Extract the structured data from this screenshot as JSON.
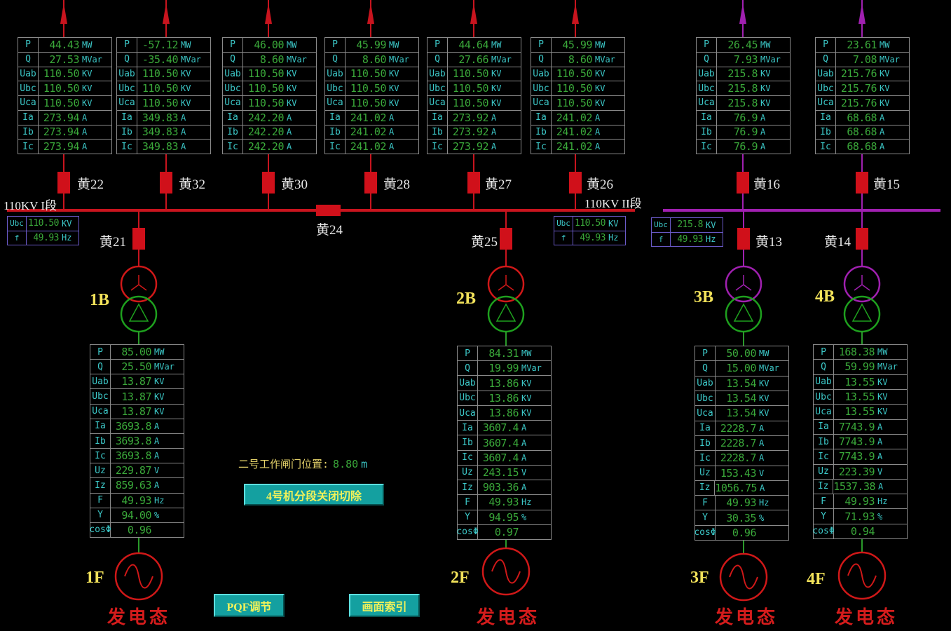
{
  "colors": {
    "bus_110kv": "#c8141e",
    "bus_220kv": "#a020b0",
    "breaker": "#d0101a",
    "value": "#3aa83a",
    "label": "#3cc8c8",
    "gen_line": "#2a9a2a"
  },
  "buses": [
    {
      "name": "110KV I段",
      "ubc": "110.50",
      "ubc_unit": "KV",
      "f": "49.93",
      "f_unit": "Hz"
    },
    {
      "name": "110KV II段",
      "ubc": "110.50",
      "ubc_unit": "KV",
      "f": "49.93",
      "f_unit": "Hz"
    },
    {
      "name": "",
      "ubc": "215.8",
      "ubc_unit": "KV",
      "f": "49.93",
      "f_unit": "Hz"
    }
  ],
  "bus_row_labels": {
    "ubc": "Ubc",
    "f": "f"
  },
  "feeders": [
    {
      "breaker": "黄22",
      "rows": [
        [
          "P",
          "44.43",
          "MW"
        ],
        [
          "Q",
          "27.53",
          "MVar"
        ],
        [
          "Uab",
          "110.50",
          "KV"
        ],
        [
          "Ubc",
          "110.50",
          "KV"
        ],
        [
          "Uca",
          "110.50",
          "KV"
        ],
        [
          "Ia",
          "273.94",
          "A"
        ],
        [
          "Ib",
          "273.94",
          "A"
        ],
        [
          "Ic",
          "273.94",
          "A"
        ]
      ]
    },
    {
      "breaker": "黄32",
      "rows": [
        [
          "P",
          "-57.12",
          "MW"
        ],
        [
          "Q",
          "-35.40",
          "MVar"
        ],
        [
          "Uab",
          "110.50",
          "KV"
        ],
        [
          "Ubc",
          "110.50",
          "KV"
        ],
        [
          "Uca",
          "110.50",
          "KV"
        ],
        [
          "Ia",
          "349.83",
          "A"
        ],
        [
          "Ib",
          "349.83",
          "A"
        ],
        [
          "Ic",
          "349.83",
          "A"
        ]
      ]
    },
    {
      "breaker": "黄30",
      "rows": [
        [
          "P",
          "46.00",
          "MW"
        ],
        [
          "Q",
          "8.60",
          "MVar"
        ],
        [
          "Uab",
          "110.50",
          "KV"
        ],
        [
          "Ubc",
          "110.50",
          "KV"
        ],
        [
          "Uca",
          "110.50",
          "KV"
        ],
        [
          "Ia",
          "242.20",
          "A"
        ],
        [
          "Ib",
          "242.20",
          "A"
        ],
        [
          "Ic",
          "242.20",
          "A"
        ]
      ]
    },
    {
      "breaker": "黄28",
      "rows": [
        [
          "P",
          "45.99",
          "MW"
        ],
        [
          "Q",
          "8.60",
          "MVar"
        ],
        [
          "Uab",
          "110.50",
          "KV"
        ],
        [
          "Ubc",
          "110.50",
          "KV"
        ],
        [
          "Uca",
          "110.50",
          "KV"
        ],
        [
          "Ia",
          "241.02",
          "A"
        ],
        [
          "Ib",
          "241.02",
          "A"
        ],
        [
          "Ic",
          "241.02",
          "A"
        ]
      ]
    },
    {
      "breaker": "黄27",
      "rows": [
        [
          "P",
          "44.64",
          "MW"
        ],
        [
          "Q",
          "27.66",
          "MVar"
        ],
        [
          "Uab",
          "110.50",
          "KV"
        ],
        [
          "Ubc",
          "110.50",
          "KV"
        ],
        [
          "Uca",
          "110.50",
          "KV"
        ],
        [
          "Ia",
          "273.92",
          "A"
        ],
        [
          "Ib",
          "273.92",
          "A"
        ],
        [
          "Ic",
          "273.92",
          "A"
        ]
      ]
    },
    {
      "breaker": "黄26",
      "rows": [
        [
          "P",
          "45.99",
          "MW"
        ],
        [
          "Q",
          "8.60",
          "MVar"
        ],
        [
          "Uab",
          "110.50",
          "KV"
        ],
        [
          "Ubc",
          "110.50",
          "KV"
        ],
        [
          "Uca",
          "110.50",
          "KV"
        ],
        [
          "Ia",
          "241.02",
          "A"
        ],
        [
          "Ib",
          "241.02",
          "A"
        ],
        [
          "Ic",
          "241.02",
          "A"
        ]
      ]
    },
    {
      "breaker": "黄16",
      "rows": [
        [
          "P",
          "26.45",
          "MW"
        ],
        [
          "Q",
          "7.93",
          "MVar"
        ],
        [
          "Uab",
          "215.8",
          "KV"
        ],
        [
          "Ubc",
          "215.8",
          "KV"
        ],
        [
          "Uca",
          "215.8",
          "KV"
        ],
        [
          "Ia",
          "76.9",
          "A"
        ],
        [
          "Ib",
          "76.9",
          "A"
        ],
        [
          "Ic",
          "76.9",
          "A"
        ]
      ]
    },
    {
      "breaker": "黄15",
      "rows": [
        [
          "P",
          "23.61",
          "MW"
        ],
        [
          "Q",
          "7.08",
          "MVar"
        ],
        [
          "Uab",
          "215.76",
          "KV"
        ],
        [
          "Ubc",
          "215.76",
          "KV"
        ],
        [
          "Uca",
          "215.76",
          "KV"
        ],
        [
          "Ia",
          "68.68",
          "A"
        ],
        [
          "Ib",
          "68.68",
          "A"
        ],
        [
          "Ic",
          "68.68",
          "A"
        ]
      ]
    }
  ],
  "bus_tie": "黄24",
  "units": [
    {
      "breaker": "黄21",
      "transformer": "1B",
      "generator": "1F",
      "state": "发电态",
      "rows": [
        [
          "P",
          "85.00",
          "MW"
        ],
        [
          "Q",
          "25.50",
          "MVar"
        ],
        [
          "Uab",
          "13.87",
          "KV"
        ],
        [
          "Ubc",
          "13.87",
          "KV"
        ],
        [
          "Uca",
          "13.87",
          "KV"
        ],
        [
          "Ia",
          "3693.8",
          "A"
        ],
        [
          "Ib",
          "3693.8",
          "A"
        ],
        [
          "Ic",
          "3693.8",
          "A"
        ],
        [
          "Uz",
          "229.87",
          "V"
        ],
        [
          "Iz",
          "859.63",
          "A"
        ],
        [
          "F",
          "49.93",
          "Hz"
        ],
        [
          "Y",
          "94.00",
          "%"
        ],
        [
          "cosΦ",
          "0.96",
          ""
        ]
      ]
    },
    {
      "breaker": "黄25",
      "transformer": "2B",
      "generator": "2F",
      "state": "发电态",
      "rows": [
        [
          "P",
          "84.31",
          "MW"
        ],
        [
          "Q",
          "19.99",
          "MVar"
        ],
        [
          "Uab",
          "13.86",
          "KV"
        ],
        [
          "Ubc",
          "13.86",
          "KV"
        ],
        [
          "Uca",
          "13.86",
          "KV"
        ],
        [
          "Ia",
          "3607.4",
          "A"
        ],
        [
          "Ib",
          "3607.4",
          "A"
        ],
        [
          "Ic",
          "3607.4",
          "A"
        ],
        [
          "Uz",
          "243.15",
          "V"
        ],
        [
          "Iz",
          "903.36",
          "A"
        ],
        [
          "F",
          "49.93",
          "Hz"
        ],
        [
          "Y",
          "94.95",
          "%"
        ],
        [
          "cosΦ",
          "0.97",
          ""
        ]
      ]
    },
    {
      "breaker": "黄13",
      "transformer": "3B",
      "generator": "3F",
      "state": "发电态",
      "rows": [
        [
          "P",
          "50.00",
          "MW"
        ],
        [
          "Q",
          "15.00",
          "MVar"
        ],
        [
          "Uab",
          "13.54",
          "KV"
        ],
        [
          "Ubc",
          "13.54",
          "KV"
        ],
        [
          "Uca",
          "13.54",
          "KV"
        ],
        [
          "Ia",
          "2228.7",
          "A"
        ],
        [
          "Ib",
          "2228.7",
          "A"
        ],
        [
          "Ic",
          "2228.7",
          "A"
        ],
        [
          "Uz",
          "153.43",
          "V"
        ],
        [
          "Iz",
          "1056.75",
          "A"
        ],
        [
          "F",
          "49.93",
          "Hz"
        ],
        [
          "Y",
          "30.35",
          "%"
        ],
        [
          "cosΦ",
          "0.96",
          ""
        ]
      ]
    },
    {
      "breaker": "黄14",
      "transformer": "4B",
      "generator": "4F",
      "state": "发电态",
      "rows": [
        [
          "P",
          "168.38",
          "MW"
        ],
        [
          "Q",
          "59.99",
          "MVar"
        ],
        [
          "Uab",
          "13.55",
          "KV"
        ],
        [
          "Ubc",
          "13.55",
          "KV"
        ],
        [
          "Uca",
          "13.55",
          "KV"
        ],
        [
          "Ia",
          "7743.9",
          "A"
        ],
        [
          "Ib",
          "7743.9",
          "A"
        ],
        [
          "Ic",
          "7743.9",
          "A"
        ],
        [
          "Uz",
          "223.39",
          "V"
        ],
        [
          "Iz",
          "1537.38",
          "A"
        ],
        [
          "F",
          "49.93",
          "Hz"
        ],
        [
          "Y",
          "71.93",
          "%"
        ],
        [
          "cosΦ",
          "0.94",
          ""
        ]
      ]
    }
  ],
  "gate": {
    "label": "二号工作闸门位置:",
    "value": "8.80",
    "unit": "m"
  },
  "buttons": {
    "cutoff": "4号机分段关闭切除",
    "pqf": "PQF调节",
    "index": "画面索引"
  }
}
